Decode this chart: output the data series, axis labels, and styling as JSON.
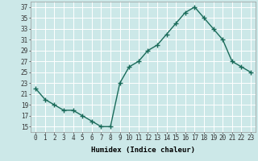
{
  "x": [
    0,
    1,
    2,
    3,
    4,
    5,
    6,
    7,
    8,
    9,
    10,
    11,
    12,
    13,
    14,
    15,
    16,
    17,
    18,
    19,
    20,
    21,
    22,
    23
  ],
  "y": [
    22,
    20,
    19,
    18,
    18,
    17,
    16,
    15,
    15,
    23,
    26,
    27,
    29,
    30,
    32,
    34,
    36,
    37,
    35,
    33,
    31,
    27,
    26,
    25
  ],
  "line_color": "#1a6b5a",
  "marker": "+",
  "marker_size": 4,
  "linewidth": 1.0,
  "xlabel": "Humidex (Indice chaleur)",
  "xlim": [
    -0.5,
    23.5
  ],
  "ylim": [
    14,
    38
  ],
  "yticks": [
    15,
    17,
    19,
    21,
    23,
    25,
    27,
    29,
    31,
    33,
    35,
    37
  ],
  "xticks": [
    0,
    1,
    2,
    3,
    4,
    5,
    6,
    7,
    8,
    9,
    10,
    11,
    12,
    13,
    14,
    15,
    16,
    17,
    18,
    19,
    20,
    21,
    22,
    23
  ],
  "bg_color": "#cce8e8",
  "grid_color": "#ffffff",
  "xlabel_fontsize": 6.5,
  "tick_fontsize": 5.5
}
